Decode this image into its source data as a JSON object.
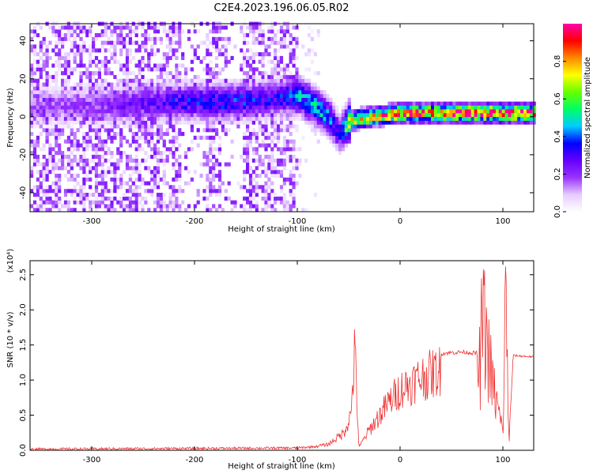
{
  "title": "C2E4.2023.196.06.05.R02",
  "chart_data": [
    {
      "type": "heatmap",
      "xlabel": "Height of straight line (km)",
      "ylabel": "Frequency (Hz)",
      "xlim": [
        -360,
        130
      ],
      "ylim": [
        -50,
        49
      ],
      "xticks": [
        -300,
        -200,
        -100,
        0,
        100
      ],
      "yticks": [
        -40,
        -20,
        0,
        20,
        40
      ],
      "colorbar": {
        "label": "Normalized spectral amplitude",
        "range": [
          0,
          1
        ],
        "ticks": [
          "0.0",
          "0.2",
          "0.4",
          "0.6",
          "0.8"
        ],
        "colors": [
          "#ffffff",
          "#e6ccff",
          "#9933ff",
          "#6600ff",
          "#0000ff",
          "#00ccff",
          "#00ff66",
          "#66ff00",
          "#ffff00",
          "#ff8800",
          "#ff0000",
          "#ff00aa"
        ]
      },
      "ridge": [
        {
          "x": -360,
          "f": 5,
          "amp": 0.15
        },
        {
          "x": -300,
          "f": 5,
          "amp": 0.18
        },
        {
          "x": -220,
          "f": 7,
          "amp": 0.3
        },
        {
          "x": -170,
          "f": 7,
          "amp": 0.35
        },
        {
          "x": -120,
          "f": 9,
          "amp": 0.3
        },
        {
          "x": -100,
          "f": 10,
          "amp": 0.4
        },
        {
          "x": -85,
          "f": 5,
          "amp": 0.45
        },
        {
          "x": -70,
          "f": -2,
          "amp": 0.4
        },
        {
          "x": -60,
          "f": -10,
          "amp": 0.3
        },
        {
          "x": -50,
          "f": -3,
          "amp": 0.7
        },
        {
          "x": -30,
          "f": -1,
          "amp": 0.75
        },
        {
          "x": 0,
          "f": 1,
          "amp": 0.8
        },
        {
          "x": 50,
          "f": 1,
          "amp": 0.85
        },
        {
          "x": 100,
          "f": 1,
          "amp": 0.9
        },
        {
          "x": 130,
          "f": 1,
          "amp": 0.85
        }
      ]
    },
    {
      "type": "line",
      "xlabel": "Height of straight line (km)",
      "ylabel": "SNR (10 * v/v)",
      "yscale_label": "(x10⁴)",
      "xlim": [
        -360,
        130
      ],
      "ylim": [
        0,
        2.7
      ],
      "xticks": [
        -300,
        -200,
        -100,
        0,
        100
      ],
      "yticks": [
        "0.0",
        "0.5",
        "1.0",
        "1.5",
        "2.0",
        "2.5"
      ],
      "color": "#ee3333",
      "envelope": [
        {
          "x": -360,
          "y": 0.0
        },
        {
          "x": -100,
          "y": 0.03
        },
        {
          "x": -70,
          "y": 0.1
        },
        {
          "x": -55,
          "y": 0.3
        },
        {
          "x": -48,
          "y": 0.6
        },
        {
          "x": -44,
          "y": 1.72
        },
        {
          "x": -40,
          "y": 0.05
        },
        {
          "x": -30,
          "y": 0.35
        },
        {
          "x": -20,
          "y": 0.6
        },
        {
          "x": -10,
          "y": 0.85
        },
        {
          "x": 0,
          "y": 1.05
        },
        {
          "x": 20,
          "y": 1.25
        },
        {
          "x": 40,
          "y": 1.38
        },
        {
          "x": 60,
          "y": 1.4
        },
        {
          "x": 78,
          "y": 1.38
        },
        {
          "x": 80,
          "y": 2.3
        },
        {
          "x": 90,
          "y": 1.1
        },
        {
          "x": 100,
          "y": 0.3
        },
        {
          "x": 103,
          "y": 2.7
        },
        {
          "x": 106,
          "y": 0.1
        },
        {
          "x": 110,
          "y": 1.35
        },
        {
          "x": 130,
          "y": 1.33
        }
      ]
    }
  ]
}
